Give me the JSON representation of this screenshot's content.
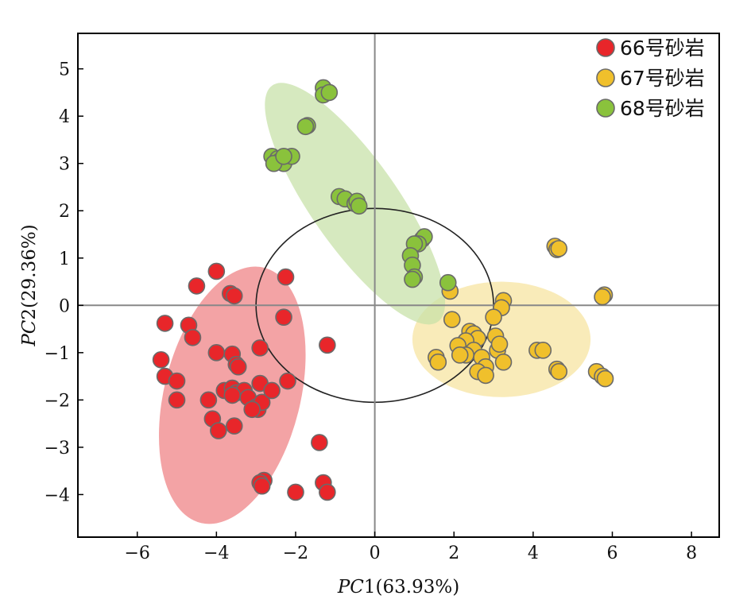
{
  "chart_data": {
    "type": "scatter",
    "title": "",
    "xlabel": {
      "italic": "PC",
      "rest": "1(63.93%)"
    },
    "ylabel": {
      "italic": "PC",
      "rest": "2(29.36%)"
    },
    "xlim": [
      -7.5,
      8.7
    ],
    "ylim": [
      -4.9,
      5.75
    ],
    "x_ticks": [
      -6,
      -4,
      -2,
      0,
      2,
      4,
      6,
      8
    ],
    "y_ticks": [
      -4,
      -3,
      -2,
      -1,
      0,
      1,
      2,
      3,
      4,
      5
    ],
    "x_tick_labels": [
      "−6",
      "−4",
      "−2",
      "0",
      "2",
      "4",
      "6",
      "8"
    ],
    "y_tick_labels": [
      "−4",
      "−3",
      "−2",
      "−1",
      "0",
      "1",
      "2",
      "3",
      "4",
      "5"
    ],
    "legend_position": "top-right",
    "zero_lines": true,
    "reference_circle": {
      "center": [
        0,
        0
      ],
      "rx": 3.0,
      "ry": 2.05,
      "color": "#222222"
    },
    "series": [
      {
        "name": "66号砂岩",
        "color": "#e8262a",
        "ellipse": {
          "center": [
            -3.6,
            -1.9
          ],
          "rx": 1.72,
          "ry": 2.78,
          "angle": 14.0,
          "fill": "#ee7f82"
        },
        "points": [
          [
            -4.0,
            0.72
          ],
          [
            -4.5,
            0.41
          ],
          [
            -3.65,
            0.25
          ],
          [
            -3.55,
            0.2
          ],
          [
            -5.3,
            -0.38
          ],
          [
            -4.7,
            -0.42
          ],
          [
            -4.6,
            -0.68
          ],
          [
            -4.0,
            -1.0
          ],
          [
            -3.6,
            -1.03
          ],
          [
            -3.5,
            -1.25
          ],
          [
            -3.45,
            -1.3
          ],
          [
            -2.9,
            -0.9
          ],
          [
            -2.25,
            0.6
          ],
          [
            -2.3,
            -0.25
          ],
          [
            -1.2,
            -0.84
          ],
          [
            -5.4,
            -1.15
          ],
          [
            -5.3,
            -1.5
          ],
          [
            -5.0,
            -1.6
          ],
          [
            -5.0,
            -2.0
          ],
          [
            -3.8,
            -1.8
          ],
          [
            -3.6,
            -1.75
          ],
          [
            -3.5,
            -1.85
          ],
          [
            -3.3,
            -1.8
          ],
          [
            -3.2,
            -1.95
          ],
          [
            -3.0,
            -2.15
          ],
          [
            -2.95,
            -2.2
          ],
          [
            -2.9,
            -1.65
          ],
          [
            -2.85,
            -2.05
          ],
          [
            -2.6,
            -1.8
          ],
          [
            -2.2,
            -1.6
          ],
          [
            -4.2,
            -2.0
          ],
          [
            -3.6,
            -1.9
          ],
          [
            -3.1,
            -2.2
          ],
          [
            -4.1,
            -2.4
          ],
          [
            -3.95,
            -2.65
          ],
          [
            -3.55,
            -2.55
          ],
          [
            -1.4,
            -2.9
          ],
          [
            -2.8,
            -3.7
          ],
          [
            -2.9,
            -3.75
          ],
          [
            -2.85,
            -3.82
          ],
          [
            -2.0,
            -3.95
          ],
          [
            -1.3,
            -3.75
          ],
          [
            -1.2,
            -3.95
          ]
        ]
      },
      {
        "name": "67号砂岩",
        "color": "#f0c02c",
        "ellipse": {
          "center": [
            3.2,
            -0.72
          ],
          "rx": 2.25,
          "ry": 1.22,
          "angle": 0.0,
          "fill": "#f7e39e"
        },
        "points": [
          [
            4.55,
            1.25
          ],
          [
            4.6,
            1.18
          ],
          [
            4.65,
            1.2
          ],
          [
            5.8,
            0.22
          ],
          [
            5.75,
            0.18
          ],
          [
            1.9,
            0.3
          ],
          [
            3.25,
            0.1
          ],
          [
            3.2,
            -0.05
          ],
          [
            3.0,
            -0.25
          ],
          [
            1.95,
            -0.3
          ],
          [
            2.4,
            -0.55
          ],
          [
            2.5,
            -0.6
          ],
          [
            2.6,
            -0.7
          ],
          [
            2.3,
            -0.75
          ],
          [
            2.1,
            -0.85
          ],
          [
            2.5,
            -0.95
          ],
          [
            2.3,
            -1.05
          ],
          [
            2.7,
            -1.1
          ],
          [
            2.15,
            -1.05
          ],
          [
            3.05,
            -0.65
          ],
          [
            3.1,
            -0.95
          ],
          [
            3.15,
            -0.82
          ],
          [
            1.55,
            -1.1
          ],
          [
            1.6,
            -1.2
          ],
          [
            3.25,
            -1.2
          ],
          [
            2.8,
            -1.3
          ],
          [
            2.6,
            -1.4
          ],
          [
            2.8,
            -1.48
          ],
          [
            4.1,
            -0.95
          ],
          [
            4.25,
            -0.95
          ],
          [
            4.6,
            -1.35
          ],
          [
            4.65,
            -1.4
          ],
          [
            5.6,
            -1.4
          ],
          [
            5.75,
            -1.5
          ],
          [
            5.82,
            -1.55
          ]
        ]
      },
      {
        "name": "68号砂岩",
        "color": "#8ac23c",
        "ellipse": {
          "center": [
            -0.5,
            2.15
          ],
          "rx": 1.1,
          "ry": 3.05,
          "angle": -35.0,
          "fill": "#c6e0a6"
        },
        "points": [
          [
            -1.3,
            4.6
          ],
          [
            -1.3,
            4.45
          ],
          [
            -1.15,
            4.5
          ],
          [
            -1.7,
            3.8
          ],
          [
            -1.75,
            3.78
          ],
          [
            -2.6,
            3.15
          ],
          [
            -2.45,
            3.1
          ],
          [
            -2.4,
            3.05
          ],
          [
            -2.3,
            3.0
          ],
          [
            -2.1,
            3.15
          ],
          [
            -2.55,
            3.0
          ],
          [
            -2.3,
            3.15
          ],
          [
            -0.9,
            2.3
          ],
          [
            -0.75,
            2.25
          ],
          [
            -0.5,
            2.15
          ],
          [
            -0.45,
            2.2
          ],
          [
            -0.4,
            2.1
          ],
          [
            1.2,
            1.4
          ],
          [
            1.25,
            1.45
          ],
          [
            1.1,
            1.3
          ],
          [
            1.0,
            1.3
          ],
          [
            0.9,
            1.05
          ],
          [
            0.95,
            0.85
          ],
          [
            1.0,
            0.6
          ],
          [
            0.95,
            0.55
          ],
          [
            1.85,
            0.48
          ]
        ]
      }
    ]
  }
}
